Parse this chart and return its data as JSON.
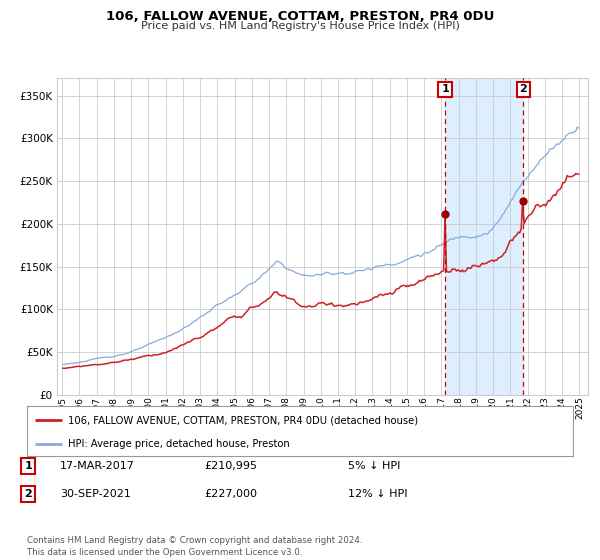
{
  "title": "106, FALLOW AVENUE, COTTAM, PRESTON, PR4 0DU",
  "subtitle": "Price paid vs. HM Land Registry's House Price Index (HPI)",
  "legend_line1": "106, FALLOW AVENUE, COTTAM, PRESTON, PR4 0DU (detached house)",
  "legend_line2": "HPI: Average price, detached house, Preston",
  "transaction1_label": "1",
  "transaction1_date": "17-MAR-2017",
  "transaction1_price": 210995,
  "transaction1_hpi_diff": "5% ↓ HPI",
  "transaction2_label": "2",
  "transaction2_date": "30-SEP-2021",
  "transaction2_price": 227000,
  "transaction2_hpi_diff": "12% ↓ HPI",
  "footer": "Contains HM Land Registry data © Crown copyright and database right 2024.\nThis data is licensed under the Open Government Licence v3.0.",
  "hpi_color": "#88aadd",
  "price_color": "#cc2222",
  "marker_color": "#990000",
  "shading_color": "#ddeeff",
  "grid_color": "#cccccc",
  "bg_color": "#ffffff",
  "ylim": [
    0,
    370000
  ],
  "yticks": [
    0,
    50000,
    100000,
    150000,
    200000,
    250000,
    300000,
    350000
  ],
  "transaction1_x": 2017.21,
  "transaction2_x": 2021.75
}
